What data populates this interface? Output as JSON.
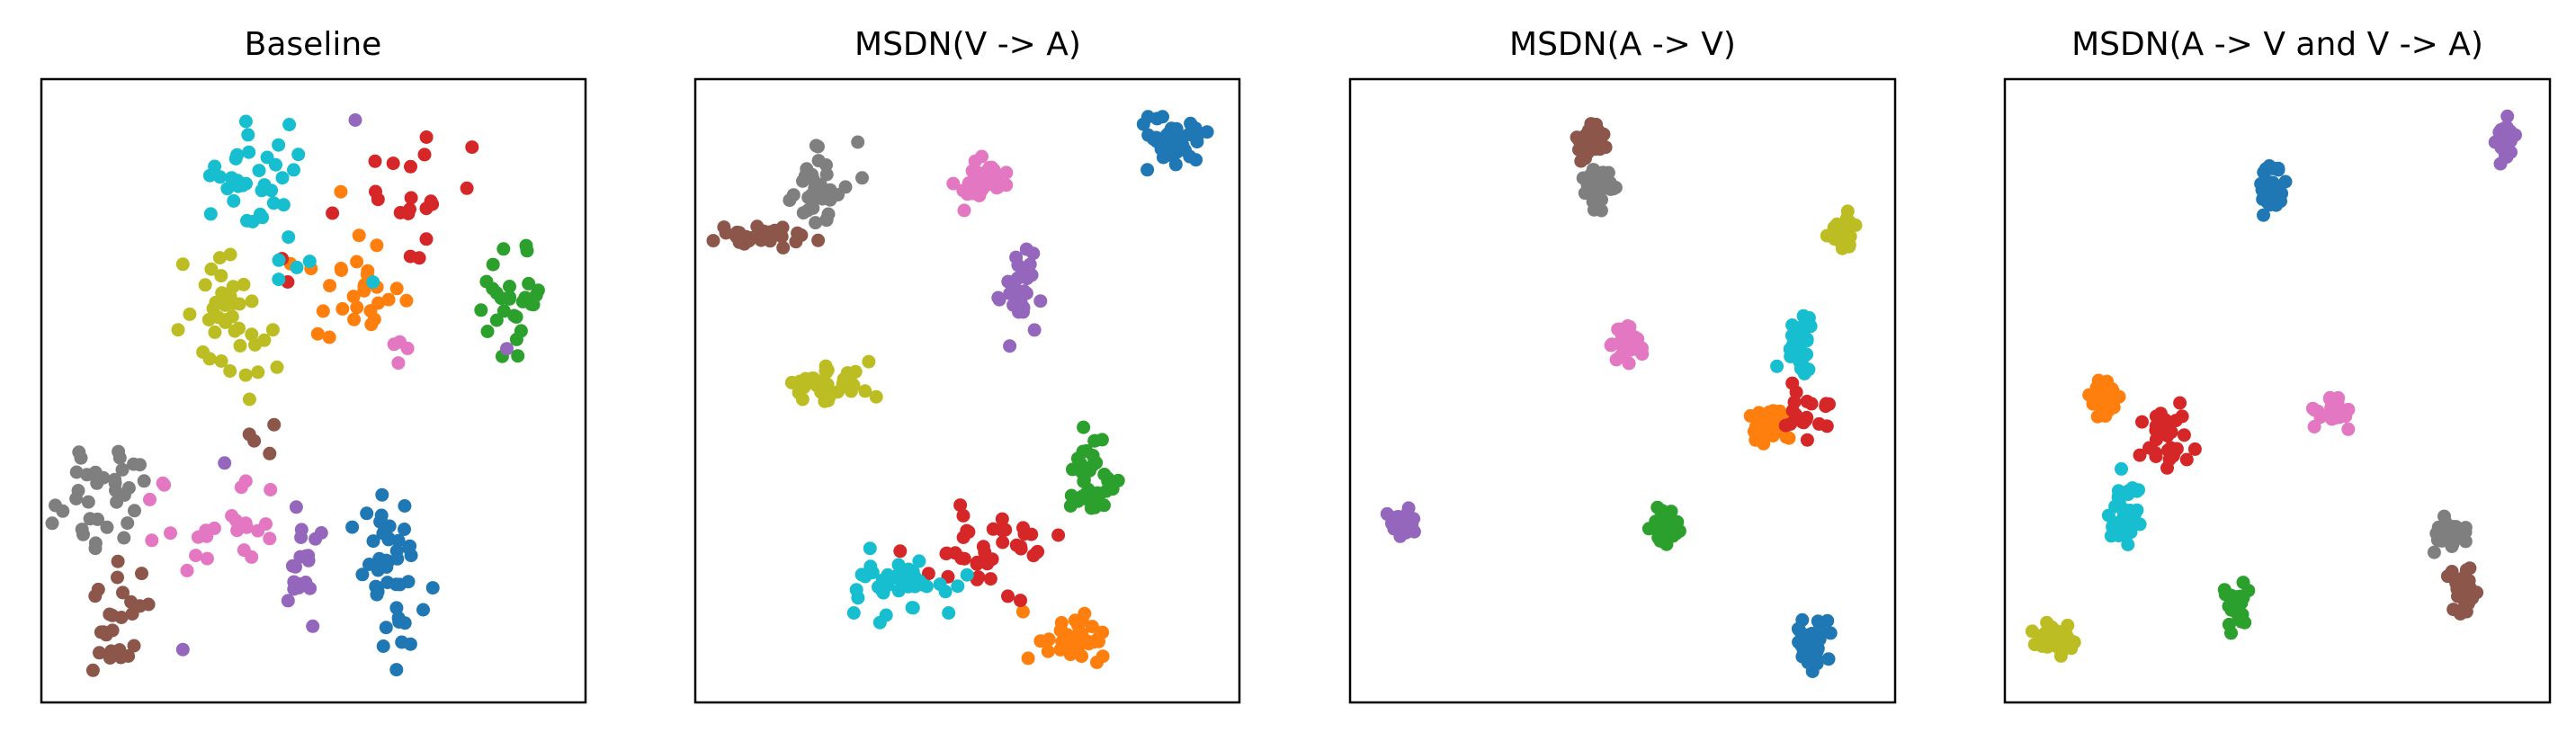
{
  "chart_data": [
    {
      "type": "scatter",
      "title": "Baseline",
      "xlim": [
        0,
        100
      ],
      "ylim": [
        0,
        100
      ],
      "grid": false,
      "axes_ticks": false,
      "series": [
        {
          "color": "#1f77b4",
          "clusters": [
            {
              "cx": 65,
              "cy": 19,
              "sx": 3.0,
              "sy": 7.0,
              "n": 45
            }
          ]
        },
        {
          "color": "#ff7f0e",
          "clusters": [
            {
              "cx": 58,
              "cy": 68,
              "sx": 5.0,
              "sy": 5.0,
              "n": 30
            }
          ]
        },
        {
          "color": "#2ca02c",
          "clusters": [
            {
              "cx": 88,
              "cy": 65,
              "sx": 3.5,
              "sy": 4.0,
              "n": 28
            }
          ]
        },
        {
          "color": "#d62728",
          "clusters": [
            {
              "cx": 67,
              "cy": 85,
              "sx": 6.0,
              "sy": 5.0,
              "n": 20
            },
            {
              "cx": 45,
              "cy": 68,
              "sx": 1.5,
              "sy": 3.0,
              "n": 2
            }
          ]
        },
        {
          "color": "#9467bd",
          "clusters": [
            {
              "cx": 48,
              "cy": 22,
              "sx": 2.5,
              "sy": 6.0,
              "n": 20
            },
            {
              "cx": 58,
              "cy": 95,
              "sx": 0.5,
              "sy": 0.5,
              "n": 1
            },
            {
              "cx": 87,
              "cy": 57,
              "sx": 0.5,
              "sy": 0.5,
              "n": 1
            },
            {
              "cx": 25,
              "cy": 7,
              "sx": 0.5,
              "sy": 0.5,
              "n": 1
            },
            {
              "cx": 33,
              "cy": 38,
              "sx": 0.5,
              "sy": 0.5,
              "n": 1
            }
          ]
        },
        {
          "color": "#8c564b",
          "clusters": [
            {
              "cx": 13,
              "cy": 12,
              "sx": 4.0,
              "sy": 5.0,
              "n": 25
            },
            {
              "cx": 40,
              "cy": 42,
              "sx": 3.0,
              "sy": 3.0,
              "n": 4
            }
          ]
        },
        {
          "color": "#e377c2",
          "clusters": [
            {
              "cx": 33,
              "cy": 27,
              "sx": 6.0,
              "sy": 5.0,
              "n": 25
            },
            {
              "cx": 66,
              "cy": 58,
              "sx": 2.0,
              "sy": 2.0,
              "n": 4
            }
          ]
        },
        {
          "color": "#7f7f7f",
          "clusters": [
            {
              "cx": 10,
              "cy": 33,
              "sx": 4.5,
              "sy": 5.0,
              "n": 35
            }
          ]
        },
        {
          "color": "#bcbd22",
          "clusters": [
            {
              "cx": 33,
              "cy": 62,
              "sx": 5.0,
              "sy": 5.5,
              "n": 40
            }
          ]
        },
        {
          "color": "#17becf",
          "clusters": [
            {
              "cx": 38,
              "cy": 85,
              "sx": 4.5,
              "sy": 5.0,
              "n": 35
            },
            {
              "cx": 52,
              "cy": 70,
              "sx": 6.0,
              "sy": 3.0,
              "n": 4
            }
          ]
        }
      ]
    },
    {
      "type": "scatter",
      "title": "MSDN(V -> A)",
      "xlim": [
        0,
        100
      ],
      "ylim": [
        0,
        100
      ],
      "grid": false,
      "axes_ticks": false,
      "series": [
        {
          "color": "#1f77b4",
          "clusters": [
            {
              "cx": 89,
              "cy": 91,
              "sx": 3.5,
              "sy": 2.0,
              "n": 45
            }
          ]
        },
        {
          "color": "#ff7f0e",
          "clusters": [
            {
              "cx": 69,
              "cy": 8,
              "sx": 3.0,
              "sy": 2.0,
              "n": 40
            }
          ]
        },
        {
          "color": "#2ca02c",
          "clusters": [
            {
              "cx": 74,
              "cy": 36,
              "sx": 2.0,
              "sy": 4.0,
              "n": 38
            }
          ]
        },
        {
          "color": "#d62728",
          "clusters": [
            {
              "cx": 52,
              "cy": 23,
              "sx": 6.0,
              "sy": 4.0,
              "n": 40
            }
          ]
        },
        {
          "color": "#9467bd",
          "clusters": [
            {
              "cx": 60,
              "cy": 67,
              "sx": 1.5,
              "sy": 3.0,
              "n": 30
            }
          ]
        },
        {
          "color": "#8c564b",
          "clusters": [
            {
              "cx": 12,
              "cy": 76,
              "sx": 5.0,
              "sy": 1.0,
              "n": 35
            }
          ]
        },
        {
          "color": "#e377c2",
          "clusters": [
            {
              "cx": 53,
              "cy": 85,
              "sx": 2.5,
              "sy": 2.0,
              "n": 40
            }
          ]
        },
        {
          "color": "#7f7f7f",
          "clusters": [
            {
              "cx": 22,
              "cy": 84,
              "sx": 3.0,
              "sy": 3.5,
              "n": 35
            }
          ]
        },
        {
          "color": "#bcbd22",
          "clusters": [
            {
              "cx": 24,
              "cy": 51,
              "sx": 4.0,
              "sy": 1.5,
              "n": 40
            }
          ]
        },
        {
          "color": "#17becf",
          "clusters": [
            {
              "cx": 37,
              "cy": 18,
              "sx": 4.5,
              "sy": 2.5,
              "n": 40
            }
          ]
        }
      ]
    },
    {
      "type": "scatter",
      "title": "MSDN(A -> V)",
      "xlim": [
        0,
        100
      ],
      "ylim": [
        0,
        100
      ],
      "grid": false,
      "axes_ticks": false,
      "series": [
        {
          "color": "#1f77b4",
          "clusters": [
            {
              "cx": 86,
              "cy": 8,
              "sx": 1.5,
              "sy": 2.0,
              "n": 40
            }
          ]
        },
        {
          "color": "#ff7f0e",
          "clusters": [
            {
              "cx": 78,
              "cy": 44,
              "sx": 2.0,
              "sy": 1.5,
              "n": 40
            }
          ]
        },
        {
          "color": "#2ca02c",
          "clusters": [
            {
              "cx": 58,
              "cy": 27,
              "sx": 1.2,
              "sy": 2.0,
              "n": 30
            }
          ]
        },
        {
          "color": "#d62728",
          "clusters": [
            {
              "cx": 85,
              "cy": 46,
              "sx": 3.5,
              "sy": 2.5,
              "n": 20
            }
          ]
        },
        {
          "color": "#9467bd",
          "clusters": [
            {
              "cx": 8,
              "cy": 28,
              "sx": 1.5,
              "sy": 1.0,
              "n": 40
            }
          ]
        },
        {
          "color": "#8c564b",
          "clusters": [
            {
              "cx": 44,
              "cy": 92,
              "sx": 1.2,
              "sy": 1.5,
              "n": 35
            }
          ]
        },
        {
          "color": "#e377c2",
          "clusters": [
            {
              "cx": 51,
              "cy": 58,
              "sx": 1.5,
              "sy": 1.5,
              "n": 35
            }
          ]
        },
        {
          "color": "#7f7f7f",
          "clusters": [
            {
              "cx": 45,
              "cy": 84,
              "sx": 1.5,
              "sy": 1.5,
              "n": 35
            }
          ]
        },
        {
          "color": "#bcbd22",
          "clusters": [
            {
              "cx": 92,
              "cy": 76,
              "sx": 1.2,
              "sy": 1.5,
              "n": 35
            }
          ]
        },
        {
          "color": "#17becf",
          "clusters": [
            {
              "cx": 84,
              "cy": 58,
              "sx": 1.5,
              "sy": 2.5,
              "n": 35
            }
          ]
        }
      ]
    },
    {
      "type": "scatter",
      "title": "MSDN(A -> V and V -> A)",
      "xlim": [
        0,
        100
      ],
      "ylim": [
        0,
        100
      ],
      "grid": false,
      "axes_ticks": false,
      "series": [
        {
          "color": "#1f77b4",
          "clusters": [
            {
              "cx": 49,
              "cy": 83,
              "sx": 1.2,
              "sy": 2.0,
              "n": 35
            }
          ]
        },
        {
          "color": "#ff7f0e",
          "clusters": [
            {
              "cx": 17,
              "cy": 49,
              "sx": 1.5,
              "sy": 1.5,
              "n": 35
            }
          ]
        },
        {
          "color": "#2ca02c",
          "clusters": [
            {
              "cx": 42,
              "cy": 15,
              "sx": 1.2,
              "sy": 2.0,
              "n": 30
            }
          ]
        },
        {
          "color": "#d62728",
          "clusters": [
            {
              "cx": 29,
              "cy": 42,
              "sx": 3.0,
              "sy": 2.5,
              "n": 30
            }
          ]
        },
        {
          "color": "#9467bd",
          "clusters": [
            {
              "cx": 93,
              "cy": 92,
              "sx": 1.0,
              "sy": 1.5,
              "n": 30
            }
          ]
        },
        {
          "color": "#8c564b",
          "clusters": [
            {
              "cx": 86,
              "cy": 17,
              "sx": 1.2,
              "sy": 2.5,
              "n": 30
            }
          ]
        },
        {
          "color": "#e377c2",
          "clusters": [
            {
              "cx": 61,
              "cy": 47,
              "sx": 1.5,
              "sy": 1.5,
              "n": 35
            }
          ]
        },
        {
          "color": "#7f7f7f",
          "clusters": [
            {
              "cx": 84,
              "cy": 27,
              "sx": 2.0,
              "sy": 1.2,
              "n": 30
            }
          ]
        },
        {
          "color": "#bcbd22",
          "clusters": [
            {
              "cx": 8,
              "cy": 9,
              "sx": 1.5,
              "sy": 1.2,
              "n": 35
            }
          ]
        },
        {
          "color": "#17becf",
          "clusters": [
            {
              "cx": 21,
              "cy": 30,
              "sx": 1.5,
              "sy": 3.0,
              "n": 35
            }
          ]
        }
      ]
    }
  ]
}
